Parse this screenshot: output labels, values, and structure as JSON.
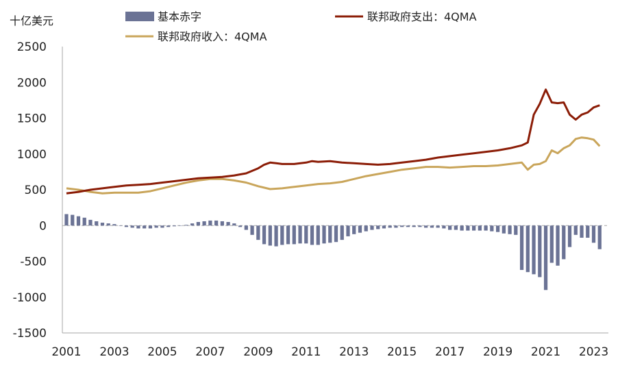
{
  "chart_data": {
    "type": "bar+line",
    "ylabel": "十亿美元",
    "ylim": [
      -1500,
      2500
    ],
    "yticks": [
      "2500",
      "2000",
      "1500",
      "1000",
      "500",
      "0",
      "-500",
      "-1000",
      "-1500"
    ],
    "xticks": [
      "2001",
      "2003",
      "2005",
      "2007",
      "2009",
      "2011",
      "2013",
      "2015",
      "2017",
      "2019",
      "2021",
      "2023"
    ],
    "xrange": [
      2001.0,
      2023.5
    ],
    "grid": false,
    "legend_position": "top",
    "colors": {
      "bar": "#6b7395",
      "spending": "#8b1c06",
      "revenue": "#c9a55a",
      "axis": "#a6a6a6"
    },
    "series": [
      {
        "name": "基本赤字",
        "kind": "bar",
        "x": [
          2001.0,
          2001.25,
          2001.5,
          2001.75,
          2002.0,
          2002.25,
          2002.5,
          2002.75,
          2003.0,
          2003.25,
          2003.5,
          2003.75,
          2004.0,
          2004.25,
          2004.5,
          2004.75,
          2005.0,
          2005.25,
          2005.5,
          2005.75,
          2006.0,
          2006.25,
          2006.5,
          2006.75,
          2007.0,
          2007.25,
          2007.5,
          2007.75,
          2008.0,
          2008.25,
          2008.5,
          2008.75,
          2009.0,
          2009.25,
          2009.5,
          2009.75,
          2010.0,
          2010.25,
          2010.5,
          2010.75,
          2011.0,
          2011.25,
          2011.5,
          2011.75,
          2012.0,
          2012.25,
          2012.5,
          2012.75,
          2013.0,
          2013.25,
          2013.5,
          2013.75,
          2014.0,
          2014.25,
          2014.5,
          2014.75,
          2015.0,
          2015.25,
          2015.5,
          2015.75,
          2016.0,
          2016.25,
          2016.5,
          2016.75,
          2017.0,
          2017.25,
          2017.5,
          2017.75,
          2018.0,
          2018.25,
          2018.5,
          2018.75,
          2019.0,
          2019.25,
          2019.5,
          2019.75,
          2020.0,
          2020.25,
          2020.5,
          2020.75,
          2021.0,
          2021.25,
          2021.5,
          2021.75,
          2022.0,
          2022.25,
          2022.5,
          2022.75,
          2023.0,
          2023.25
        ],
        "values": [
          160,
          150,
          130,
          110,
          80,
          60,
          40,
          30,
          20,
          0,
          -20,
          -30,
          -40,
          -40,
          -40,
          -30,
          -30,
          -20,
          -10,
          -5,
          10,
          30,
          50,
          60,
          70,
          70,
          60,
          50,
          30,
          -20,
          -60,
          -130,
          -200,
          -260,
          -280,
          -290,
          -270,
          -260,
          -260,
          -250,
          -250,
          -270,
          -270,
          -250,
          -240,
          -230,
          -200,
          -150,
          -120,
          -100,
          -80,
          -60,
          -50,
          -40,
          -30,
          -30,
          -20,
          -20,
          -20,
          -20,
          -30,
          -30,
          -30,
          -40,
          -60,
          -60,
          -70,
          -70,
          -70,
          -70,
          -70,
          -80,
          -90,
          -110,
          -120,
          -130,
          -620,
          -650,
          -680,
          -720,
          -900,
          -520,
          -560,
          -470,
          -300,
          -130,
          -170,
          -170,
          -240,
          -330
        ]
      },
      {
        "name": "联邦政府支出：4QMA",
        "kind": "line",
        "x": [
          2001.0,
          2001.5,
          2002.0,
          2002.5,
          2003.0,
          2003.5,
          2004.0,
          2004.5,
          2005.0,
          2005.5,
          2006.0,
          2006.5,
          2007.0,
          2007.5,
          2008.0,
          2008.5,
          2009.0,
          2009.25,
          2009.5,
          2009.75,
          2010.0,
          2010.5,
          2011.0,
          2011.25,
          2011.5,
          2012.0,
          2012.5,
          2013.0,
          2013.5,
          2014.0,
          2014.5,
          2015.0,
          2015.5,
          2016.0,
          2016.5,
          2017.0,
          2017.5,
          2018.0,
          2018.5,
          2019.0,
          2019.5,
          2020.0,
          2020.25,
          2020.5,
          2020.75,
          2021.0,
          2021.25,
          2021.5,
          2021.75,
          2022.0,
          2022.25,
          2022.5,
          2022.75,
          2023.0,
          2023.25
        ],
        "values": [
          450,
          470,
          500,
          520,
          540,
          560,
          570,
          580,
          600,
          620,
          640,
          660,
          670,
          680,
          700,
          730,
          800,
          850,
          880,
          870,
          860,
          860,
          880,
          900,
          890,
          900,
          880,
          870,
          860,
          850,
          860,
          880,
          900,
          920,
          950,
          970,
          990,
          1010,
          1030,
          1050,
          1080,
          1120,
          1160,
          1550,
          1700,
          1900,
          1720,
          1710,
          1720,
          1550,
          1480,
          1550,
          1580,
          1650,
          1680
        ]
      },
      {
        "name": "联邦政府收入：4QMA",
        "kind": "line",
        "x": [
          2001.0,
          2001.5,
          2002.0,
          2002.5,
          2003.0,
          2003.5,
          2004.0,
          2004.5,
          2005.0,
          2005.5,
          2006.0,
          2006.5,
          2007.0,
          2007.5,
          2008.0,
          2008.5,
          2009.0,
          2009.5,
          2010.0,
          2010.5,
          2011.0,
          2011.5,
          2012.0,
          2012.5,
          2013.0,
          2013.5,
          2014.0,
          2014.5,
          2015.0,
          2015.5,
          2016.0,
          2016.5,
          2017.0,
          2017.5,
          2018.0,
          2018.5,
          2019.0,
          2019.5,
          2020.0,
          2020.25,
          2020.5,
          2020.75,
          2021.0,
          2021.25,
          2021.5,
          2021.75,
          2022.0,
          2022.25,
          2022.5,
          2022.75,
          2023.0,
          2023.25
        ],
        "values": [
          520,
          500,
          470,
          450,
          460,
          460,
          460,
          480,
          520,
          560,
          600,
          630,
          650,
          650,
          630,
          600,
          550,
          510,
          520,
          540,
          560,
          580,
          590,
          610,
          650,
          690,
          720,
          750,
          780,
          800,
          820,
          820,
          810,
          820,
          830,
          830,
          840,
          860,
          880,
          780,
          850,
          860,
          900,
          1050,
          1010,
          1080,
          1120,
          1210,
          1230,
          1220,
          1200,
          1110
        ]
      }
    ]
  }
}
